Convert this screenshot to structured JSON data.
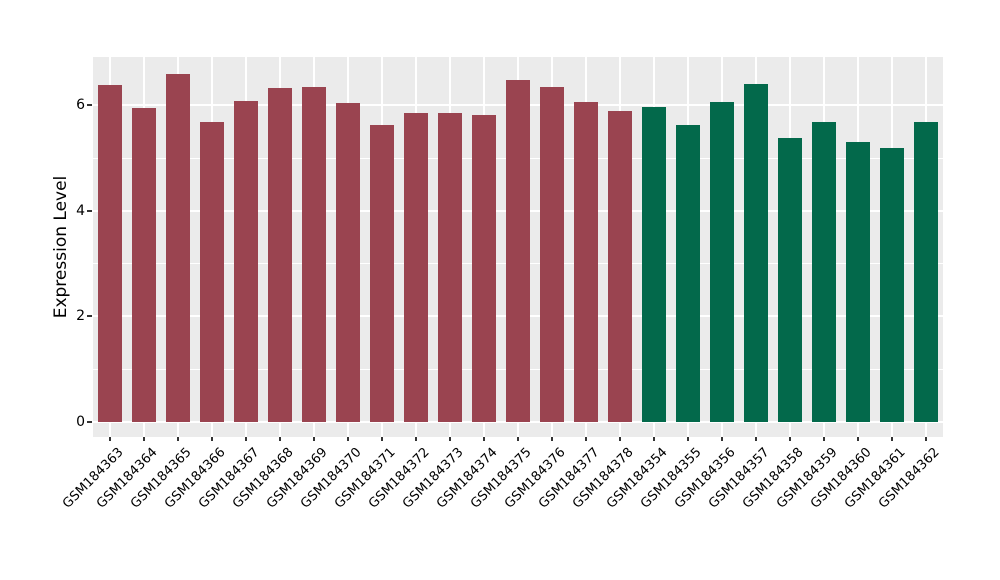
{
  "chart_data": {
    "type": "bar",
    "title": "",
    "xlabel": "",
    "ylabel": "Expression Level",
    "ylim": [
      0,
      6.91
    ],
    "yticks": [
      0,
      2,
      4,
      6
    ],
    "yticks_minor": [
      1,
      3,
      5
    ],
    "grid": true,
    "legend_position": "none",
    "panel_bg": "#EBEBEB",
    "grid_color": "#FFFFFF",
    "tick_mark_color": "#333333",
    "text_color": "#000000",
    "group_colors": {
      "group1": "#9A4450",
      "group2": "#03694B"
    },
    "bars": [
      {
        "label": "GSM184363",
        "value": 6.39,
        "group": "group1"
      },
      {
        "label": "GSM184364",
        "value": 5.94,
        "group": "group1"
      },
      {
        "label": "GSM184365",
        "value": 6.59,
        "group": "group1"
      },
      {
        "label": "GSM184366",
        "value": 5.68,
        "group": "group1"
      },
      {
        "label": "GSM184367",
        "value": 6.08,
        "group": "group1"
      },
      {
        "label": "GSM184368",
        "value": 6.32,
        "group": "group1"
      },
      {
        "label": "GSM184369",
        "value": 6.35,
        "group": "group1"
      },
      {
        "label": "GSM184370",
        "value": 6.05,
        "group": "group1"
      },
      {
        "label": "GSM184371",
        "value": 5.62,
        "group": "group1"
      },
      {
        "label": "GSM184372",
        "value": 5.85,
        "group": "group1"
      },
      {
        "label": "GSM184373",
        "value": 5.85,
        "group": "group1"
      },
      {
        "label": "GSM184374",
        "value": 5.81,
        "group": "group1"
      },
      {
        "label": "GSM184375",
        "value": 6.47,
        "group": "group1"
      },
      {
        "label": "GSM184376",
        "value": 6.35,
        "group": "group1"
      },
      {
        "label": "GSM184377",
        "value": 6.06,
        "group": "group1"
      },
      {
        "label": "GSM184378",
        "value": 5.89,
        "group": "group1"
      },
      {
        "label": "GSM184354",
        "value": 5.97,
        "group": "group2"
      },
      {
        "label": "GSM184355",
        "value": 5.62,
        "group": "group2"
      },
      {
        "label": "GSM184356",
        "value": 6.07,
        "group": "group2"
      },
      {
        "label": "GSM184357",
        "value": 6.4,
        "group": "group2"
      },
      {
        "label": "GSM184358",
        "value": 5.38,
        "group": "group2"
      },
      {
        "label": "GSM184359",
        "value": 5.68,
        "group": "group2"
      },
      {
        "label": "GSM184360",
        "value": 5.31,
        "group": "group2"
      },
      {
        "label": "GSM184361",
        "value": 5.19,
        "group": "group2"
      },
      {
        "label": "GSM184362",
        "value": 5.68,
        "group": "group2"
      }
    ]
  }
}
